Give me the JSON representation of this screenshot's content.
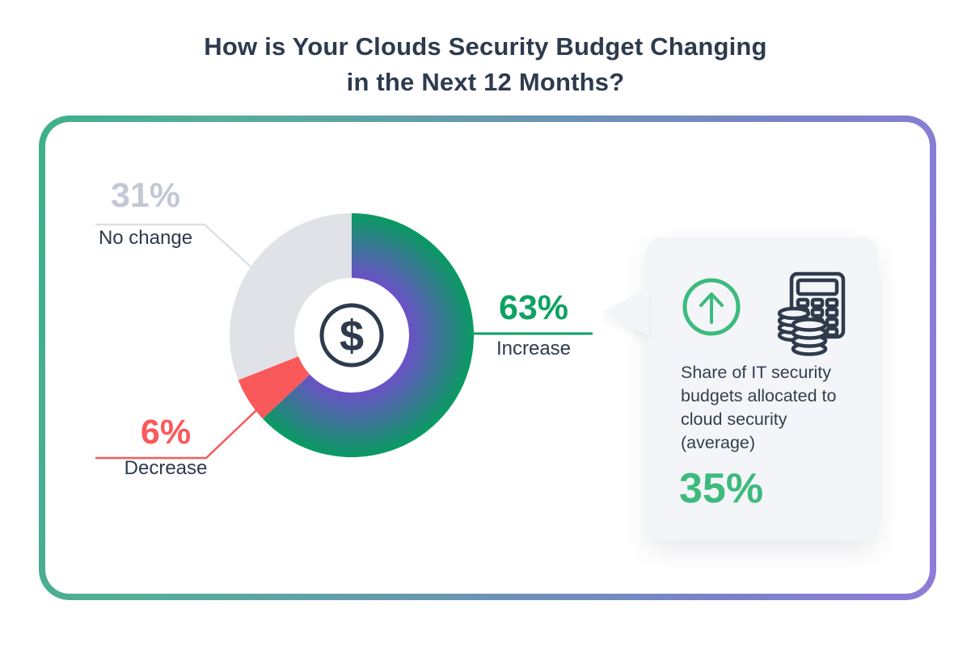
{
  "title": {
    "line1": "How is Your Clouds Security Budget Changing",
    "line2": "in the Next 12 Months?"
  },
  "chart_data": {
    "type": "pie",
    "donut": true,
    "title": "How is Your Clouds Security Budget Changing in the Next 12 Months?",
    "start_angle_deg": 0,
    "direction": "clockwise",
    "slices": [
      {
        "label": "Increase",
        "value": 63,
        "fill": "gradient",
        "gradient": {
          "inner": "#6B51C7",
          "outer": "#099B61"
        }
      },
      {
        "label": "Decrease",
        "value": 6,
        "color": "#F9595B"
      },
      {
        "label": "No change",
        "value": 31,
        "color": "#E0E2E7"
      }
    ],
    "center_symbol": "$",
    "annotation": {
      "text": "Share of IT security budgets allocated to cloud security (average)",
      "value": "35%"
    }
  },
  "labels": {
    "no_change": {
      "pct": "31%",
      "name": "No change",
      "pct_color": "#C3C9D4"
    },
    "decrease": {
      "pct": "6%",
      "name": "Decrease",
      "pct_color": "#F9595B"
    },
    "increase": {
      "pct": "63%",
      "name": "Increase",
      "pct_color": "#0FA263"
    }
  },
  "callout": {
    "icons": [
      "arrow-up-circle-icon",
      "calculator-coins-icon"
    ],
    "text": "Share of IT security budgets allocated to cloud security (average)",
    "value": "35%"
  },
  "center": {
    "symbol": "$"
  },
  "colors": {
    "navy": "#2E3A4D",
    "green_dark": "#0FA263",
    "green_light": "#3CBB7D",
    "red": "#F9595B",
    "slice_gray": "#E0E2E7",
    "label_gray": "#C3C9D4",
    "leader_gray": "#DCDFE5",
    "box_bg": "#F4F5F8",
    "frame_gradient_left": "#3FAF8B",
    "frame_gradient_right": "#8F7BD8",
    "donut_inner_purple": "#6B51C7",
    "donut_outer_green": "#099B61"
  }
}
